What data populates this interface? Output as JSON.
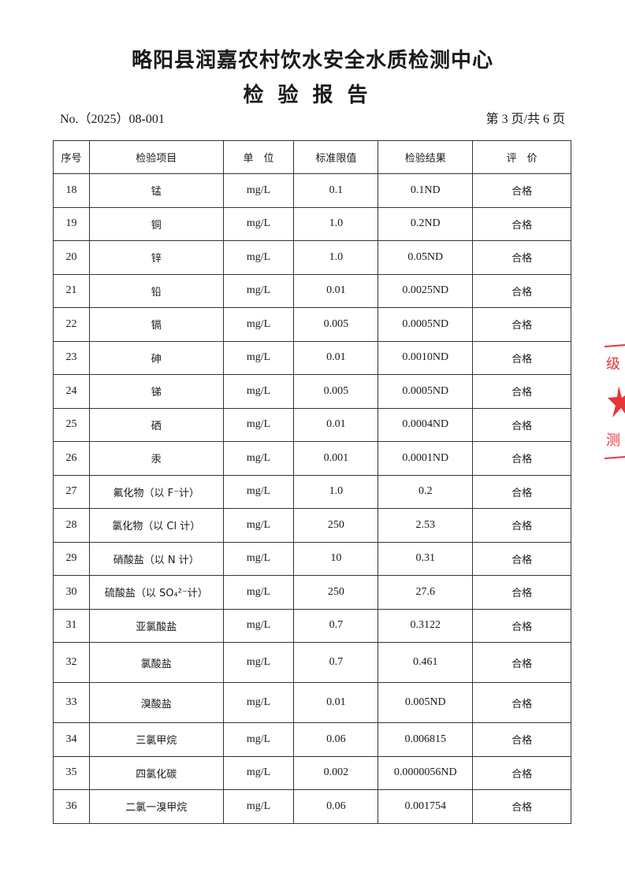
{
  "header": {
    "title": "略阳县润嘉农村饮水安全水质检测中心",
    "subtitle": "检验报告",
    "report_no": "No.（2025）08-001",
    "page_info": "第 3 页/共 6 页"
  },
  "table": {
    "columns": [
      "序号",
      "检验项目",
      "单　位",
      "标准限值",
      "检验结果",
      "评　价"
    ],
    "rows": [
      {
        "no": "18",
        "item": "锰",
        "unit": "mg/L",
        "limit": "0.1",
        "result": "0.1ND",
        "eval": "合格"
      },
      {
        "no": "19",
        "item": "铜",
        "unit": "mg/L",
        "limit": "1.0",
        "result": "0.2ND",
        "eval": "合格"
      },
      {
        "no": "20",
        "item": "锌",
        "unit": "mg/L",
        "limit": "1.0",
        "result": "0.05ND",
        "eval": "合格"
      },
      {
        "no": "21",
        "item": "铅",
        "unit": "mg/L",
        "limit": "0.01",
        "result": "0.0025ND",
        "eval": "合格"
      },
      {
        "no": "22",
        "item": "镉",
        "unit": "mg/L",
        "limit": "0.005",
        "result": "0.0005ND",
        "eval": "合格"
      },
      {
        "no": "23",
        "item": "砷",
        "unit": "mg/L",
        "limit": "0.01",
        "result": "0.0010ND",
        "eval": "合格"
      },
      {
        "no": "24",
        "item": "锑",
        "unit": "mg/L",
        "limit": "0.005",
        "result": "0.0005ND",
        "eval": "合格"
      },
      {
        "no": "25",
        "item": "硒",
        "unit": "mg/L",
        "limit": "0.01",
        "result": "0.0004ND",
        "eval": "合格"
      },
      {
        "no": "26",
        "item": "汞",
        "unit": "mg/L",
        "limit": "0.001",
        "result": "0.0001ND",
        "eval": "合格"
      },
      {
        "no": "27",
        "item": "氟化物（以 F⁻计）",
        "unit": "mg/L",
        "limit": "1.0",
        "result": "0.2",
        "eval": "合格"
      },
      {
        "no": "28",
        "item": "氯化物（以 Cl 计）",
        "unit": "mg/L",
        "limit": "250",
        "result": "2.53",
        "eval": "合格"
      },
      {
        "no": "29",
        "item": "硝酸盐（以 N 计）",
        "unit": "mg/L",
        "limit": "10",
        "result": "0.31",
        "eval": "合格"
      },
      {
        "no": "30",
        "item": "硫酸盐（以 SO₄²⁻计）",
        "unit": "mg/L",
        "limit": "250",
        "result": "27.6",
        "eval": "合格"
      },
      {
        "no": "31",
        "item": "亚氯酸盐",
        "unit": "mg/L",
        "limit": "0.7",
        "result": "0.3122",
        "eval": "合格"
      },
      {
        "no": "32",
        "item": "氯酸盐",
        "unit": "mg/L",
        "limit": "0.7",
        "result": "0.461",
        "eval": "合格"
      },
      {
        "no": "33",
        "item": "溴酸盐",
        "unit": "mg/L",
        "limit": "0.01",
        "result": "0.005ND",
        "eval": "合格"
      },
      {
        "no": "34",
        "item": "三氯甲烷",
        "unit": "mg/L",
        "limit": "0.06",
        "result": "0.006815",
        "eval": "合格"
      },
      {
        "no": "35",
        "item": "四氯化碳",
        "unit": "mg/L",
        "limit": "0.002",
        "result": "0.0000056ND",
        "eval": "合格"
      },
      {
        "no": "36",
        "item": "二氯一溴甲烷",
        "unit": "mg/L",
        "limit": "0.06",
        "result": "0.001754",
        "eval": "合格"
      }
    ]
  },
  "seal": {
    "color": "#e8353a"
  }
}
